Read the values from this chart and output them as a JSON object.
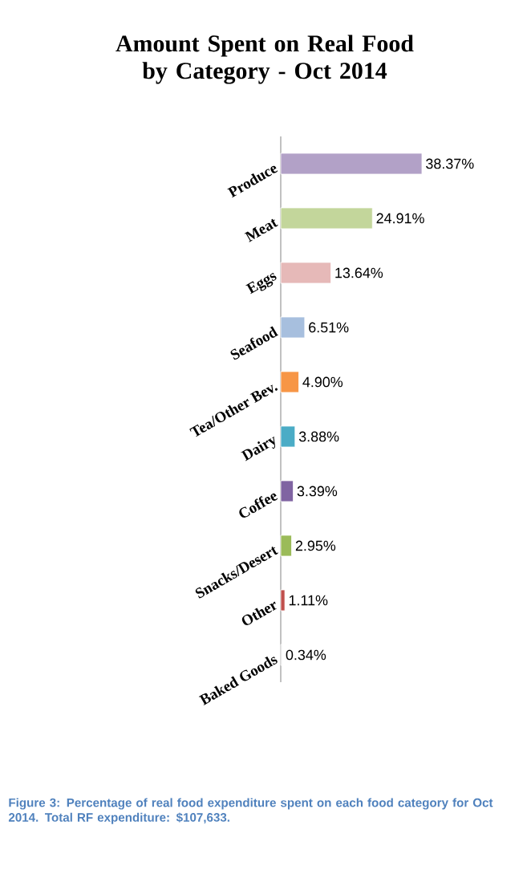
{
  "chart_data": {
    "type": "bar",
    "orientation": "horizontal",
    "title": "Amount Spent on Real Food by Category - Oct 2014",
    "categories": [
      "Produce",
      "Meat",
      "Eggs",
      "Seafood",
      "Tea/Other Bev.",
      "Dairy",
      "Coffee",
      "Snacks/Desert",
      "Other",
      "Baked Goods"
    ],
    "values": [
      38.37,
      24.91,
      13.64,
      6.51,
      4.9,
      3.88,
      3.39,
      2.95,
      1.11,
      0.34
    ],
    "value_labels": [
      "38.37%",
      "24.91%",
      "13.64%",
      "6.51%",
      "4.90%",
      "3.88%",
      "3.39%",
      "2.95%",
      "1.11%",
      "0.34%"
    ],
    "colors": [
      "#b2a1c7",
      "#c3d69b",
      "#e6b9b8",
      "#a7bfde",
      "#f79646",
      "#4bacc6",
      "#8064a2",
      "#9bbb59",
      "#c0504d",
      "#d9d9d9"
    ],
    "annotations": [
      "Figure 3: Percentage of real food expenditure spent on each food category for Oct 2014. Total RF expenditure: $107,633."
    ]
  }
}
